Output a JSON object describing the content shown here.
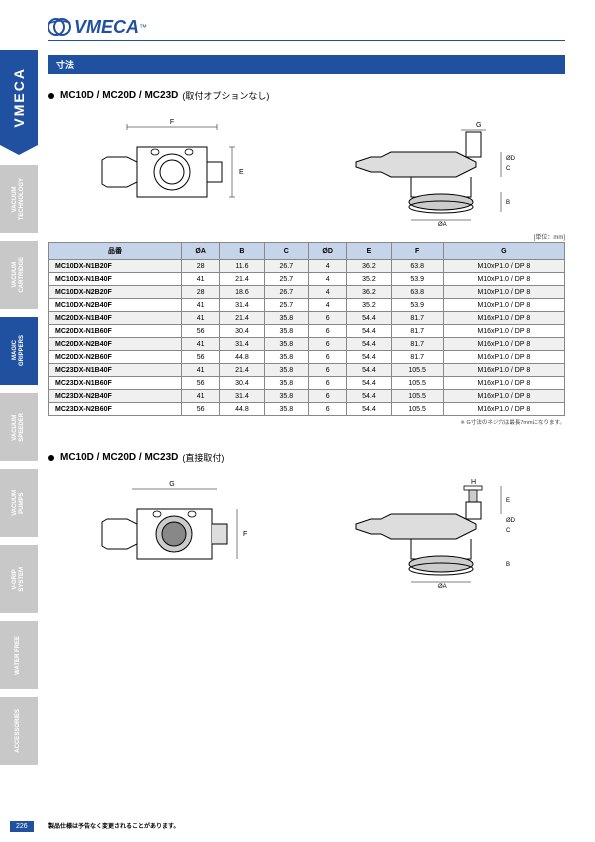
{
  "logo": {
    "brand": "VMECA",
    "tm": "™"
  },
  "sidebar": {
    "brand": "VMECA",
    "categories": [
      {
        "label": "VACUUM\nTECHNOLOGY",
        "active": false
      },
      {
        "label": "VACUUM\nCARTRIDGE",
        "active": false
      },
      {
        "label": "MAGIC\nGRIPPERS",
        "active": true
      },
      {
        "label": "VACUUM\nSPEEDER",
        "active": false
      },
      {
        "label": "VACUUM\nPUMPS",
        "active": false
      },
      {
        "label": "V-GRIP\nSYSTEM",
        "active": false
      },
      {
        "label": "WATER FREE",
        "active": false
      },
      {
        "label": "ACCESSORIES",
        "active": false
      }
    ]
  },
  "section_header": "寸法",
  "subsection1": {
    "title": "MC10D / MC20D / MC23D",
    "note": "(取付オプションなし)"
  },
  "diagram_labels": [
    "F",
    "E",
    "G",
    "ØD",
    "C",
    "B",
    "ØA"
  ],
  "unit_note": "[単位：mm]",
  "table": {
    "columns": [
      "品番",
      "ØA",
      "B",
      "C",
      "ØD",
      "E",
      "F",
      "G"
    ],
    "rows": [
      [
        "MC10DX-N1B20F",
        "28",
        "11.6",
        "26.7",
        "4",
        "36.2",
        "63.8",
        "M10xP1.0 / DP 8"
      ],
      [
        "MC10DX-N1B40F",
        "41",
        "21.4",
        "25.7",
        "4",
        "35.2",
        "53.9",
        "M10xP1.0 / DP 8"
      ],
      [
        "MC10DX-N2B20F",
        "28",
        "18.6",
        "26.7",
        "4",
        "36.2",
        "63.8",
        "M10xP1.0 / DP 8"
      ],
      [
        "MC10DX-N2B40F",
        "41",
        "31.4",
        "25.7",
        "4",
        "35.2",
        "53.9",
        "M10xP1.0 / DP 8"
      ],
      [
        "MC20DX-N1B40F",
        "41",
        "21.4",
        "35.8",
        "6",
        "54.4",
        "81.7",
        "M16xP1.0 / DP 8"
      ],
      [
        "MC20DX-N1B60F",
        "56",
        "30.4",
        "35.8",
        "6",
        "54.4",
        "81.7",
        "M16xP1.0 / DP 8"
      ],
      [
        "MC20DX-N2B40F",
        "41",
        "31.4",
        "35.8",
        "6",
        "54.4",
        "81.7",
        "M16xP1.0 / DP 8"
      ],
      [
        "MC20DX-N2B60F",
        "56",
        "44.8",
        "35.8",
        "6",
        "54.4",
        "81.7",
        "M16xP1.0 / DP 8"
      ],
      [
        "MC23DX-N1B40F",
        "41",
        "21.4",
        "35.8",
        "6",
        "54.4",
        "105.5",
        "M16xP1.0 / DP 8"
      ],
      [
        "MC23DX-N1B60F",
        "56",
        "30.4",
        "35.8",
        "6",
        "54.4",
        "105.5",
        "M16xP1.0 / DP 8"
      ],
      [
        "MC23DX-N2B40F",
        "41",
        "31.4",
        "35.8",
        "6",
        "54.4",
        "105.5",
        "M16xP1.0 / DP 8"
      ],
      [
        "MC23DX-N2B60F",
        "56",
        "44.8",
        "35.8",
        "6",
        "54.4",
        "105.5",
        "M16xP1.0 / DP 8"
      ]
    ]
  },
  "table_footnote": "※ G寸法のネジ穴は最長7mmになります。",
  "subsection2": {
    "title": "MC10D / MC20D / MC23D",
    "note": "(直接取付)"
  },
  "diagram2_labels": [
    "G",
    "F",
    "H",
    "E",
    "ØD",
    "C",
    "B",
    "ØA"
  ],
  "page_number": "226",
  "disclaimer": "製品仕様は予告なく変更されることがあります。",
  "colors": {
    "primary": "#2050a0",
    "table_header": "#c5d4e8",
    "sidebar_inactive": "#c8c8c8",
    "row_alt": "#f0f0f0"
  }
}
